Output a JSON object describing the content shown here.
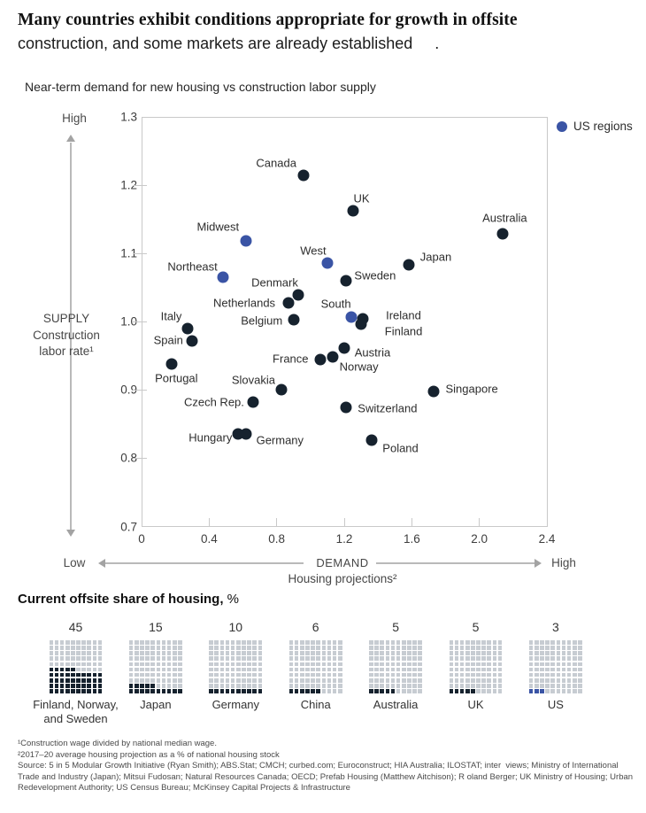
{
  "header": {
    "title_line1": "Many countries exhibit conditions appropriate for growth in offsite",
    "title_line2": "construction, and some markets are already established     .",
    "subtitle": "Near-term demand for new housing vs construction labor supply"
  },
  "colors": {
    "dark": "#16222e",
    "blue": "#3a54a5",
    "waffle_empty": "#c7ccd2",
    "axis": "#c9c9c9"
  },
  "chart_data": [
    {
      "type": "scatter",
      "title": "Near-term demand for new housing vs construction labor supply",
      "xlim": [
        0,
        2.4
      ],
      "ylim": [
        0.7,
        1.3
      ],
      "x_ticks": [
        "0",
        "0.4",
        "0.8",
        "1.2",
        "1.6",
        "2.0",
        "2.4"
      ],
      "x_tick_values": [
        0,
        0.4,
        0.8,
        1.2,
        1.6,
        2.0,
        2.4
      ],
      "y_ticks": [
        "1.3",
        "1.2",
        "1.1",
        "1.0",
        "0.9",
        "0.8",
        "0.7"
      ],
      "y_tick_values": [
        1.3,
        1.2,
        1.1,
        1.0,
        0.9,
        0.8,
        0.7
      ],
      "grid": false,
      "legend_position": "top-right",
      "legend": [
        {
          "label": "US regions",
          "color_key": "blue"
        }
      ],
      "ylabel_lines": [
        "SUPPLY",
        "Construction",
        "labor rate¹"
      ],
      "xlabel_main": "DEMAND",
      "xlabel_sub": "Housing projections²",
      "axis_extremes": {
        "y_high": "High",
        "low_shared": "Low",
        "x_high": "High"
      },
      "series": [
        {
          "name": "Countries",
          "color_key": "dark",
          "points": [
            {
              "label": "Canada",
              "x": 0.96,
              "y": 1.215,
              "dx": -31,
              "dy": -14
            },
            {
              "label": "UK",
              "x": 1.25,
              "y": 1.162,
              "dx": 10,
              "dy": -14
            },
            {
              "label": "Australia",
              "x": 2.14,
              "y": 1.129,
              "dx": 2,
              "dy": -18
            },
            {
              "label": "Japan",
              "x": 1.58,
              "y": 1.083,
              "dx": 31,
              "dy": -9
            },
            {
              "label": "Sweden",
              "x": 1.21,
              "y": 1.06,
              "dx": 33,
              "dy": -6
            },
            {
              "label": "Denmark",
              "x": 0.93,
              "y": 1.039,
              "dx": -27,
              "dy": -14
            },
            {
              "label": "Netherlands",
              "x": 0.87,
              "y": 1.027,
              "dx": -50,
              "dy": 0
            },
            {
              "label": "Belgium",
              "x": 0.9,
              "y": 1.003,
              "dx": -36,
              "dy": 1
            },
            {
              "label": "Ireland",
              "x": 1.31,
              "y": 1.004,
              "dx": 46,
              "dy": -4
            },
            {
              "label": "Finland",
              "x": 1.3,
              "y": 0.996,
              "dx": 48,
              "dy": 8
            },
            {
              "label": "Italy",
              "x": 0.27,
              "y": 0.99,
              "dx": -18,
              "dy": -14
            },
            {
              "label": "Spain",
              "x": 0.3,
              "y": 0.972,
              "dx": -27,
              "dy": -1
            },
            {
              "label": "Austria",
              "x": 1.2,
              "y": 0.962,
              "dx": 32,
              "dy": 5
            },
            {
              "label": "France",
              "x": 1.06,
              "y": 0.945,
              "dx": -34,
              "dy": -1
            },
            {
              "label": "Norway",
              "x": 1.13,
              "y": 0.948,
              "dx": 30,
              "dy": 11
            },
            {
              "label": "Portugal",
              "x": 0.18,
              "y": 0.938,
              "dx": 5,
              "dy": 16
            },
            {
              "label": "Slovakia",
              "x": 0.83,
              "y": 0.9,
              "dx": -32,
              "dy": -11
            },
            {
              "label": "Singapore",
              "x": 1.73,
              "y": 0.898,
              "dx": 43,
              "dy": -3
            },
            {
              "label": "Czech Rep.",
              "x": 0.66,
              "y": 0.882,
              "dx": -44,
              "dy": 0
            },
            {
              "label": "Switzerland",
              "x": 1.21,
              "y": 0.875,
              "dx": 47,
              "dy": 1
            },
            {
              "label": "Hungary",
              "x": 0.57,
              "y": 0.835,
              "dx": -31,
              "dy": 4
            },
            {
              "label": "Germany",
              "x": 0.62,
              "y": 0.836,
              "dx": 38,
              "dy": 7
            },
            {
              "label": "Poland",
              "x": 1.36,
              "y": 0.826,
              "dx": 33,
              "dy": 9
            }
          ]
        },
        {
          "name": "US regions",
          "color_key": "blue",
          "points": [
            {
              "label": "Midwest",
              "x": 0.62,
              "y": 1.118,
              "dx": -32,
              "dy": -16
            },
            {
              "label": "West",
              "x": 1.1,
              "y": 1.086,
              "dx": -16,
              "dy": -14
            },
            {
              "label": "Northeast",
              "x": 0.48,
              "y": 1.065,
              "dx": -34,
              "dy": -12
            },
            {
              "label": "South",
              "x": 1.24,
              "y": 1.007,
              "dx": -17,
              "dy": -15
            }
          ]
        }
      ]
    },
    {
      "type": "waffle",
      "title_bold": "Current offsite share of housing,",
      "title_suffix": " %",
      "grid_rows": 10,
      "grid_cols": 10,
      "items": [
        {
          "label": "Finland, Norway, and Sweden",
          "value": 45,
          "color_key": "dark"
        },
        {
          "label": "Japan",
          "value": 15,
          "color_key": "dark"
        },
        {
          "label": "Germany",
          "value": 10,
          "color_key": "dark"
        },
        {
          "label": "China",
          "value": 6,
          "color_key": "dark"
        },
        {
          "label": "Australia",
          "value": 5,
          "color_key": "dark"
        },
        {
          "label": "UK",
          "value": 5,
          "color_key": "dark"
        },
        {
          "label": "US",
          "value": 3,
          "color_key": "blue"
        }
      ]
    }
  ],
  "footnotes": {
    "line1": "¹Construction wage divided by national median wage.",
    "line2": "²2017–20 average housing projection as a % of national housing stock",
    "source": "Source: 5 in 5 Modular Growth Initiative (Ryan Smith); ABS.Stat; CMCH; curbed.com; Euroconstruct; HIA Australia; ILOSTAT; inter  views; Ministry of International Trade and Industry (Japan); Mitsui Fudosan; Natural Resources Canada; OECD; Prefab Housing (Matthew Aitchison); R oland Berger; UK Ministry of Housing; Urban Redevelopment Authority; US Census Bureau; McKinsey Capital Projects & Infrastructure"
  }
}
